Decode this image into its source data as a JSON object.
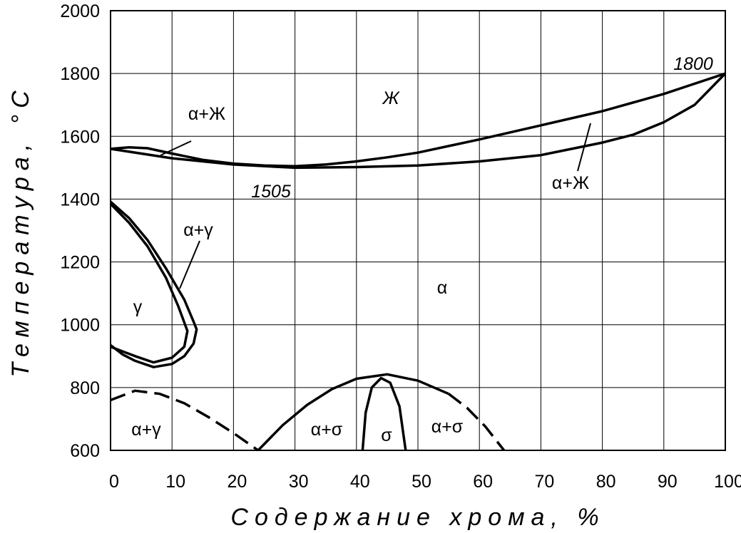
{
  "chart_data": {
    "type": "line",
    "x_label": "Содержание хрома, %",
    "y_label": "Температура, °С",
    "xlim": [
      0,
      100
    ],
    "ylim": [
      600,
      2000
    ],
    "xticks": [
      0,
      10,
      20,
      30,
      40,
      50,
      60,
      70,
      80,
      90,
      100
    ],
    "yticks": [
      600,
      800,
      1000,
      1200,
      1400,
      1600,
      1800,
      2000
    ],
    "grid": true,
    "series": [
      {
        "color": "#000000",
        "dash": false,
        "x": [
          0,
          3,
          6,
          10,
          15,
          20,
          25,
          30,
          35,
          40,
          45,
          50,
          60,
          70,
          80,
          90,
          100
        ],
        "values": [
          1560,
          1565,
          1562,
          1545,
          1525,
          1513,
          1507,
          1505,
          1510,
          1520,
          1533,
          1548,
          1590,
          1635,
          1680,
          1735,
          1800
        ]
      },
      {
        "color": "#000000",
        "dash": false,
        "x": [
          0,
          5,
          10,
          20,
          30,
          40,
          50,
          60,
          70,
          80,
          85,
          90,
          95,
          100
        ],
        "values": [
          1560,
          1545,
          1530,
          1510,
          1500,
          1502,
          1507,
          1520,
          1540,
          1580,
          1605,
          1645,
          1700,
          1800
        ]
      },
      {
        "color": "#000000",
        "dash": false,
        "x": [
          0,
          3,
          6,
          9,
          12,
          13.5,
          14,
          13.5,
          12,
          10,
          7,
          4,
          2,
          0
        ],
        "values": [
          1392,
          1340,
          1270,
          1180,
          1080,
          1010,
          985,
          940,
          900,
          875,
          865,
          885,
          905,
          935
        ]
      },
      {
        "color": "#000000",
        "dash": false,
        "x": [
          0,
          3,
          6,
          9,
          11,
          12.5,
          12,
          10,
          7,
          4,
          2,
          0
        ],
        "values": [
          1385,
          1325,
          1250,
          1150,
          1060,
          980,
          930,
          895,
          880,
          900,
          915,
          930
        ]
      },
      {
        "color": "#000000",
        "dash": true,
        "x": [
          0,
          4,
          8,
          12,
          16,
          20,
          24
        ],
        "values": [
          760,
          790,
          780,
          750,
          705,
          655,
          600
        ]
      },
      {
        "color": "#000000",
        "dash": false,
        "x": [
          24,
          28,
          32,
          36,
          40,
          45,
          50,
          55
        ],
        "values": [
          600,
          680,
          745,
          795,
          828,
          842,
          822,
          780
        ]
      },
      {
        "color": "#000000",
        "dash": true,
        "x": [
          55,
          58,
          61,
          64
        ],
        "values": [
          780,
          735,
          675,
          600
        ]
      },
      {
        "color": "#000000",
        "dash": false,
        "x": [
          41,
          41.5,
          42.5,
          44,
          45.5,
          47,
          48
        ],
        "values": [
          600,
          720,
          800,
          830,
          815,
          740,
          600
        ]
      }
    ],
    "annotations": [
      "1800",
      "Ж",
      "α+Ж",
      "1505",
      "α+Ж",
      "α+γ",
      "γ",
      "α",
      "α+γ",
      "α+σ",
      "σ",
      "α+σ"
    ]
  }
}
